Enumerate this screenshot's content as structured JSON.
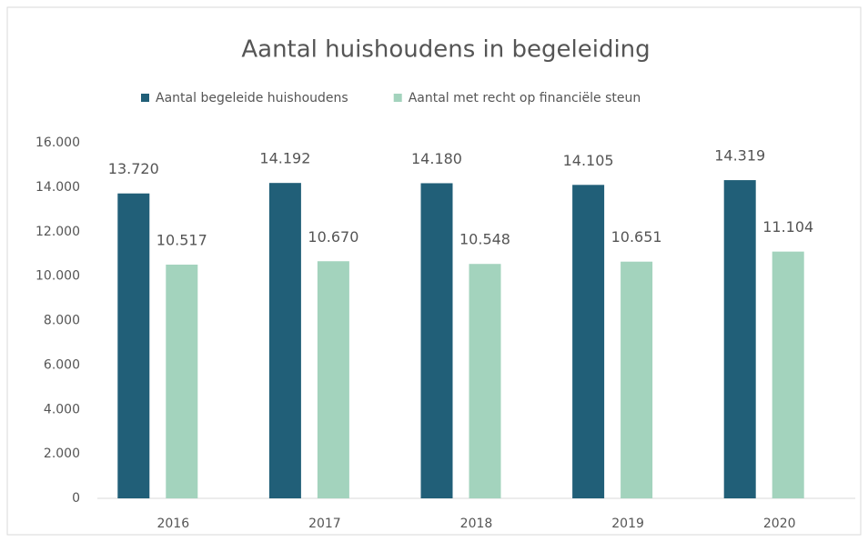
{
  "chart_data": {
    "type": "bar",
    "title": "Aantal huishoudens in begeleiding",
    "categories": [
      "2016",
      "2017",
      "2018",
      "2019",
      "2020"
    ],
    "series": [
      {
        "name": "Aantal begeleide huishoudens",
        "color": "#215f78",
        "values": [
          13720,
          14192,
          14180,
          14105,
          14319
        ],
        "value_labels": [
          "13.720",
          "14.192",
          "14.180",
          "14.105",
          "14.319"
        ]
      },
      {
        "name": "Aantal met recht op financiële steun",
        "color": "#a3d3bd",
        "values": [
          10517,
          10670,
          10548,
          10651,
          11104
        ],
        "value_labels": [
          "10.517",
          "10.670",
          "10.548",
          "10.651",
          "11.104"
        ]
      }
    ],
    "ylim": [
      0,
      16000
    ],
    "yticks": [
      0,
      {
        "value": 2000,
        "label": "2.000"
      },
      {
        "value": 4000,
        "label": "4.000"
      },
      {
        "value": 6000,
        "label": "6.000"
      },
      {
        "value": 8000,
        "label": "8.000"
      },
      {
        "value": 10000,
        "label": "10.000"
      },
      {
        "value": 12000,
        "label": "12.000"
      },
      {
        "value": 14000,
        "label": "14.000"
      },
      {
        "value": 16000,
        "label": "16.000"
      }
    ],
    "grid": false,
    "legend": "top"
  }
}
